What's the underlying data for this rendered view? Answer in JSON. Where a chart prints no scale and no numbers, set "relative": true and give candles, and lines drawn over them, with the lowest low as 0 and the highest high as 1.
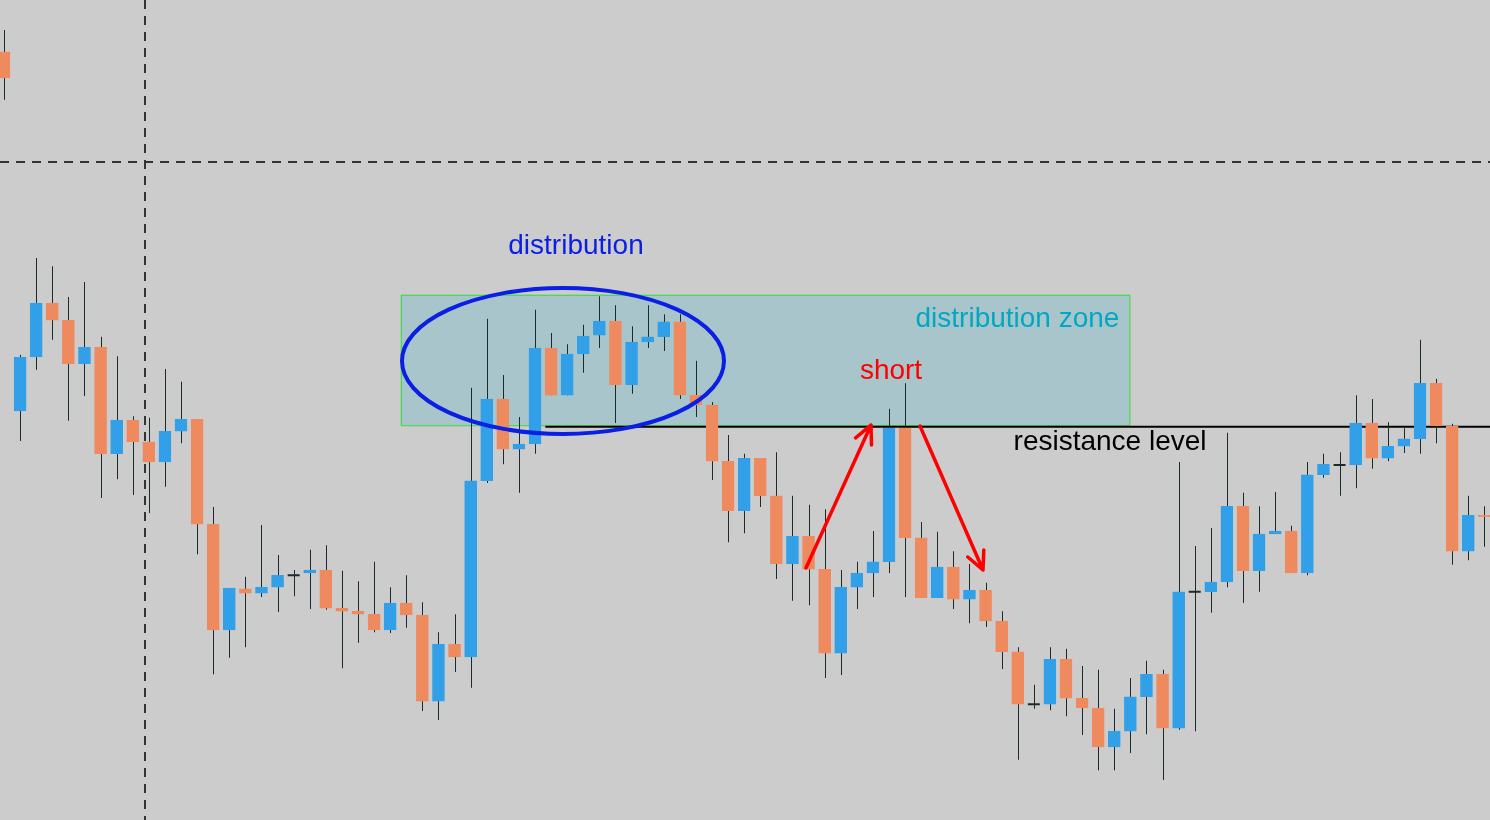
{
  "chart_data": {
    "type": "candlestick",
    "relative": true,
    "categories": [
      null,
      null,
      null,
      null,
      null,
      null,
      null,
      null,
      null,
      null,
      null,
      null,
      null,
      null,
      null,
      null,
      null,
      null,
      null,
      null,
      null,
      null,
      null,
      null,
      null,
      null,
      null,
      null,
      null,
      null,
      null,
      null,
      null,
      null,
      null,
      null,
      null,
      null,
      null,
      null,
      null,
      null,
      null,
      null,
      null,
      null,
      null,
      null,
      null,
      null,
      null,
      null,
      null,
      null,
      null,
      null,
      null,
      null,
      null,
      null,
      null,
      null,
      null,
      null,
      null,
      null,
      null,
      null,
      null,
      null,
      null,
      null,
      null,
      null,
      null,
      null,
      null,
      null,
      null,
      null,
      null,
      null,
      null,
      null,
      null,
      null,
      null,
      null,
      null,
      null,
      null,
      null,
      null
    ],
    "ohlc": [
      [
        0.971,
        1.0,
        0.907,
        0.936
      ],
      [
        0.492,
        0.567,
        0.452,
        0.564
      ],
      [
        0.564,
        0.696,
        0.547,
        0.636
      ],
      [
        0.636,
        0.685,
        0.587,
        0.613
      ],
      [
        0.613,
        0.644,
        0.479,
        0.555
      ],
      [
        0.555,
        0.664,
        0.512,
        0.577
      ],
      [
        0.577,
        0.591,
        0.376,
        0.435
      ],
      [
        0.435,
        0.565,
        0.401,
        0.48
      ],
      [
        0.48,
        0.485,
        0.38,
        0.451
      ],
      [
        0.451,
        0.483,
        0.356,
        0.424
      ],
      [
        0.424,
        0.548,
        0.391,
        0.465
      ],
      [
        0.465,
        0.531,
        0.449,
        0.481
      ],
      [
        0.481,
        0.481,
        0.301,
        0.341
      ],
      [
        0.341,
        0.364,
        0.141,
        0.2
      ],
      [
        0.2,
        0.256,
        0.163,
        0.256
      ],
      [
        0.255,
        0.271,
        0.177,
        0.249
      ],
      [
        0.249,
        0.34,
        0.244,
        0.257
      ],
      [
        0.257,
        0.3,
        0.224,
        0.273
      ],
      [
        0.273,
        0.28,
        0.245,
        0.273
      ],
      [
        0.276,
        0.307,
        0.228,
        0.28
      ],
      [
        0.28,
        0.313,
        0.227,
        0.229
      ],
      [
        0.229,
        0.279,
        0.149,
        0.225
      ],
      [
        0.225,
        0.265,
        0.183,
        0.221
      ],
      [
        0.221,
        0.291,
        0.197,
        0.2
      ],
      [
        0.2,
        0.257,
        0.196,
        0.236
      ],
      [
        0.236,
        0.273,
        0.203,
        0.22
      ],
      [
        0.22,
        0.237,
        0.092,
        0.105
      ],
      [
        0.105,
        0.197,
        0.08,
        0.181
      ],
      [
        0.181,
        0.221,
        0.144,
        0.164
      ],
      [
        0.164,
        0.523,
        0.123,
        0.399
      ],
      [
        0.399,
        0.615,
        0.396,
        0.508
      ],
      [
        0.508,
        0.54,
        0.421,
        0.441
      ],
      [
        0.441,
        0.484,
        0.383,
        0.448
      ],
      [
        0.448,
        0.627,
        0.435,
        0.576
      ],
      [
        0.576,
        0.596,
        0.513,
        0.513
      ],
      [
        0.513,
        0.581,
        0.513,
        0.568
      ],
      [
        0.568,
        0.607,
        0.543,
        0.592
      ],
      [
        0.593,
        0.645,
        0.576,
        0.612
      ],
      [
        0.612,
        0.633,
        0.476,
        0.527
      ],
      [
        0.527,
        0.605,
        0.515,
        0.584
      ],
      [
        0.584,
        0.633,
        0.576,
        0.591
      ],
      [
        0.591,
        0.621,
        0.572,
        0.611
      ],
      [
        0.611,
        0.621,
        0.508,
        0.513
      ],
      [
        0.513,
        0.559,
        0.484,
        0.5
      ],
      [
        0.5,
        0.504,
        0.4,
        0.425
      ],
      [
        0.425,
        0.46,
        0.317,
        0.359
      ],
      [
        0.359,
        0.435,
        0.329,
        0.429
      ],
      [
        0.429,
        0.429,
        0.364,
        0.379
      ],
      [
        0.379,
        0.437,
        0.268,
        0.288
      ],
      [
        0.288,
        0.379,
        0.239,
        0.325
      ],
      [
        0.325,
        0.367,
        0.233,
        0.281
      ],
      [
        0.281,
        0.361,
        0.136,
        0.169
      ],
      [
        0.169,
        0.28,
        0.14,
        0.257
      ],
      [
        0.257,
        0.291,
        0.228,
        0.276
      ],
      [
        0.276,
        0.332,
        0.244,
        0.291
      ],
      [
        0.291,
        0.495,
        0.276,
        0.469
      ],
      [
        0.469,
        0.529,
        0.244,
        0.323
      ],
      [
        0.323,
        0.344,
        0.243,
        0.243
      ],
      [
        0.243,
        0.331,
        0.243,
        0.284
      ],
      [
        0.284,
        0.305,
        0.228,
        0.241
      ],
      [
        0.241,
        0.288,
        0.209,
        0.253
      ],
      [
        0.253,
        0.263,
        0.204,
        0.212
      ],
      [
        0.212,
        0.225,
        0.148,
        0.171
      ],
      [
        0.171,
        0.177,
        0.027,
        0.101
      ],
      [
        0.101,
        0.127,
        0.095,
        0.101
      ],
      [
        0.101,
        0.177,
        0.093,
        0.161
      ],
      [
        0.161,
        0.175,
        0.085,
        0.109
      ],
      [
        0.109,
        0.152,
        0.06,
        0.096
      ],
      [
        0.096,
        0.147,
        0.013,
        0.044
      ],
      [
        0.044,
        0.095,
        0.013,
        0.065
      ],
      [
        0.065,
        0.136,
        0.036,
        0.111
      ],
      [
        0.111,
        0.159,
        0.061,
        0.141
      ],
      [
        0.141,
        0.147,
        0.0,
        0.069
      ],
      [
        0.069,
        0.424,
        0.067,
        0.251
      ],
      [
        0.251,
        0.312,
        0.065,
        0.251
      ],
      [
        0.251,
        0.336,
        0.223,
        0.264
      ],
      [
        0.264,
        0.463,
        0.257,
        0.365
      ],
      [
        0.365,
        0.383,
        0.236,
        0.279
      ],
      [
        0.279,
        0.365,
        0.251,
        0.328
      ],
      [
        0.328,
        0.384,
        0.328,
        0.332
      ],
      [
        0.332,
        0.339,
        0.276,
        0.276
      ],
      [
        0.276,
        0.424,
        0.273,
        0.407
      ],
      [
        0.407,
        0.435,
        0.403,
        0.421
      ],
      [
        0.42,
        0.437,
        0.379,
        0.42
      ],
      [
        0.42,
        0.513,
        0.389,
        0.476
      ],
      [
        0.476,
        0.508,
        0.415,
        0.429
      ],
      [
        0.429,
        0.477,
        0.425,
        0.445
      ],
      [
        0.445,
        0.469,
        0.436,
        0.455
      ],
      [
        0.455,
        0.587,
        0.435,
        0.529
      ],
      [
        0.529,
        0.535,
        0.449,
        0.472
      ],
      [
        0.472,
        0.475,
        0.287,
        0.305
      ],
      [
        0.305,
        0.379,
        0.293,
        0.353
      ],
      [
        0.353,
        0.365,
        0.311,
        0.351
      ]
    ],
    "colors": [
      "#ef8a5f",
      "#31a0e8",
      "#31a0e8",
      "#ef8a5f",
      "#ef8a5f",
      "#31a0e8",
      "#ef8a5f",
      "#31a0e8",
      "#ef8a5f",
      "#ef8a5f",
      "#31a0e8",
      "#31a0e8",
      "#ef8a5f",
      "#ef8a5f",
      "#31a0e8",
      "#ef8a5f",
      "#31a0e8",
      "#31a0e8",
      "#1a2a1a",
      "#31a0e8",
      "#ef8a5f",
      "#ef8a5f",
      "#ef8a5f",
      "#ef8a5f",
      "#31a0e8",
      "#ef8a5f",
      "#ef8a5f",
      "#31a0e8",
      "#ef8a5f",
      "#31a0e8",
      "#31a0e8",
      "#ef8a5f",
      "#31a0e8",
      "#31a0e8",
      "#ef8a5f",
      "#31a0e8",
      "#31a0e8",
      "#31a0e8",
      "#ef8a5f",
      "#31a0e8",
      "#31a0e8",
      "#31a0e8",
      "#ef8a5f",
      "#ef8a5f",
      "#ef8a5f",
      "#ef8a5f",
      "#31a0e8",
      "#ef8a5f",
      "#ef8a5f",
      "#31a0e8",
      "#ef8a5f",
      "#ef8a5f",
      "#31a0e8",
      "#31a0e8",
      "#31a0e8",
      "#31a0e8",
      "#ef8a5f",
      "#ef8a5f",
      "#31a0e8",
      "#ef8a5f",
      "#31a0e8",
      "#ef8a5f",
      "#ef8a5f",
      "#ef8a5f",
      "#1a2a1a",
      "#31a0e8",
      "#ef8a5f",
      "#ef8a5f",
      "#ef8a5f",
      "#31a0e8",
      "#31a0e8",
      "#31a0e8",
      "#ef8a5f",
      "#31a0e8",
      "#1a2a1a",
      "#31a0e8",
      "#31a0e8",
      "#ef8a5f",
      "#31a0e8",
      "#31a0e8",
      "#ef8a5f",
      "#31a0e8",
      "#31a0e8",
      "#1a2a1a",
      "#31a0e8",
      "#ef8a5f",
      "#31a0e8",
      "#31a0e8",
      "#31a0e8",
      "#ef8a5f",
      "#ef8a5f",
      "#31a0e8",
      "#ef8a5f"
    ],
    "ref_lines": [
      {
        "axis": "y",
        "value": 0.471,
        "label": "resistance level",
        "color": "#000000",
        "line_style": "solid"
      },
      {
        "axis": "y",
        "value": 0.824,
        "color": "#333333",
        "line_style": "dashed"
      }
    ],
    "bands": [
      {
        "axis": "y",
        "from": 0.473,
        "to": 0.647,
        "label": "distribution zone",
        "color": "#00a8c4"
      }
    ],
    "annotations": [
      "distribution",
      "short"
    ]
  }
}
